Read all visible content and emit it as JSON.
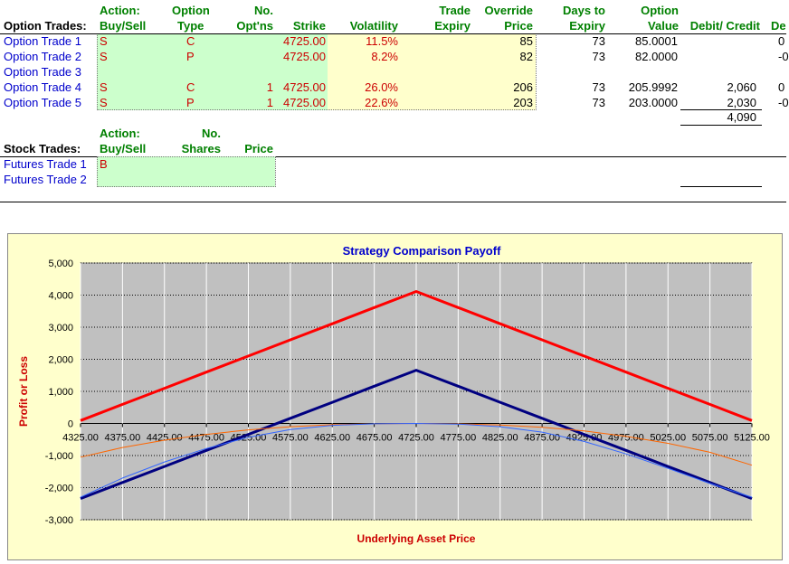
{
  "option_section": {
    "title": "Option Trades:",
    "headers": {
      "action": [
        "Action:",
        "Buy/Sell"
      ],
      "type": [
        "Option",
        "Type"
      ],
      "noptns": [
        "No.",
        "Opt'ns"
      ],
      "strike": "Strike",
      "volatility": "Volatility",
      "expiry": [
        "Trade",
        "Expiry"
      ],
      "override": [
        "Override",
        "Price"
      ],
      "days": [
        "Days to",
        "Expiry"
      ],
      "value": [
        "Option",
        "Value"
      ],
      "debitcredit": "Debit/ Credit",
      "de_cut": "De"
    },
    "rows": [
      {
        "label": "Option Trade 1",
        "action": "S",
        "type": "C",
        "noptns": "",
        "strike": "4725.00",
        "vol": "11.5%",
        "override": "85",
        "days": "73",
        "value": "85.0001",
        "debit": "",
        "de": "0"
      },
      {
        "label": "Option Trade 2",
        "action": "S",
        "type": "P",
        "noptns": "",
        "strike": "4725.00",
        "vol": "8.2%",
        "override": "82",
        "days": "73",
        "value": "82.0000",
        "debit": "",
        "de": "-0"
      },
      {
        "label": "Option Trade 3",
        "action": "",
        "type": "",
        "noptns": "",
        "strike": "",
        "vol": "",
        "override": "",
        "days": "",
        "value": "",
        "debit": "",
        "de": ""
      },
      {
        "label": "Option Trade 4",
        "action": "S",
        "type": "C",
        "noptns": "1",
        "strike": "4725.00",
        "vol": "26.0%",
        "override": "206",
        "days": "73",
        "value": "205.9992",
        "debit": "2,060",
        "de": "0"
      },
      {
        "label": "Option Trade 5",
        "action": "S",
        "type": "P",
        "noptns": "1",
        "strike": "4725.00",
        "vol": "22.6%",
        "override": "203",
        "days": "73",
        "value": "203.0000",
        "debit": "2,030",
        "de": "-0"
      }
    ],
    "total_debit": "4,090"
  },
  "stock_section": {
    "title": "Stock Trades:",
    "headers": {
      "action": [
        "Action:",
        "Buy/Sell"
      ],
      "shares": [
        "No.",
        "Shares"
      ],
      "price": "Price"
    },
    "rows": [
      {
        "label": "Futures Trade 1",
        "action": "B"
      },
      {
        "label": "Futures Trade 2",
        "action": ""
      }
    ]
  },
  "chart_data": {
    "type": "line",
    "title": "Strategy Comparison Payoff",
    "xlabel": "Underlying Asset Price",
    "ylabel": "Profit or Loss",
    "x": [
      4325,
      4375,
      4425,
      4475,
      4525,
      4575,
      4625,
      4675,
      4725,
      4775,
      4825,
      4875,
      4925,
      4975,
      5025,
      5075,
      5125
    ],
    "x_tick_labels": [
      "4325.00",
      "4375.00",
      "4425.00",
      "4475.00",
      "4525.00",
      "4575.00",
      "4625.00",
      "4675.00",
      "4725.00",
      "4775.00",
      "4825.00",
      "4875.00",
      "4925.00",
      "4975.00",
      "5025.00",
      "5075.00",
      "5125.00"
    ],
    "ylim": [
      -3000,
      5000
    ],
    "y_ticks": [
      5000,
      4000,
      3000,
      2000,
      1000,
      0,
      -1000,
      -2000,
      -3000
    ],
    "y_tick_labels": [
      "5,000",
      "4,000",
      "3,000",
      "2,000",
      "1,000",
      "0",
      "-1,000",
      "-2,000",
      "-3,000"
    ],
    "grid": true,
    "series": [
      {
        "color": "#ff0000",
        "width": 3,
        "values": [
          90,
          593,
          1096,
          1599,
          2102,
          2605,
          3108,
          3611,
          4114,
          3611,
          3108,
          2605,
          2102,
          1599,
          1096,
          593,
          90
        ]
      },
      {
        "color": "#000080",
        "width": 3,
        "values": [
          -2340,
          -1840,
          -1340,
          -840,
          -340,
          160,
          660,
          1160,
          1660,
          1160,
          660,
          160,
          -340,
          -840,
          -1340,
          -1840,
          -2340
        ]
      },
      {
        "color": "#ff6600",
        "width": 1,
        "values": [
          -1050,
          -750,
          -520,
          -340,
          -200,
          -100,
          -40,
          -10,
          0,
          -10,
          -50,
          -120,
          -230,
          -400,
          -620,
          -900,
          -1300
        ]
      },
      {
        "color": "#3366ff",
        "width": 1,
        "values": [
          -2300,
          -1700,
          -1200,
          -780,
          -430,
          -190,
          -60,
          -10,
          0,
          -20,
          -100,
          -270,
          -560,
          -950,
          -1400,
          -1870,
          -2300
        ]
      }
    ],
    "colors": {
      "plot_bg": "#c0c0c0",
      "chart_bg": "#ffffcc",
      "title": "#0000cc",
      "axis_title": "#cc0000"
    }
  }
}
